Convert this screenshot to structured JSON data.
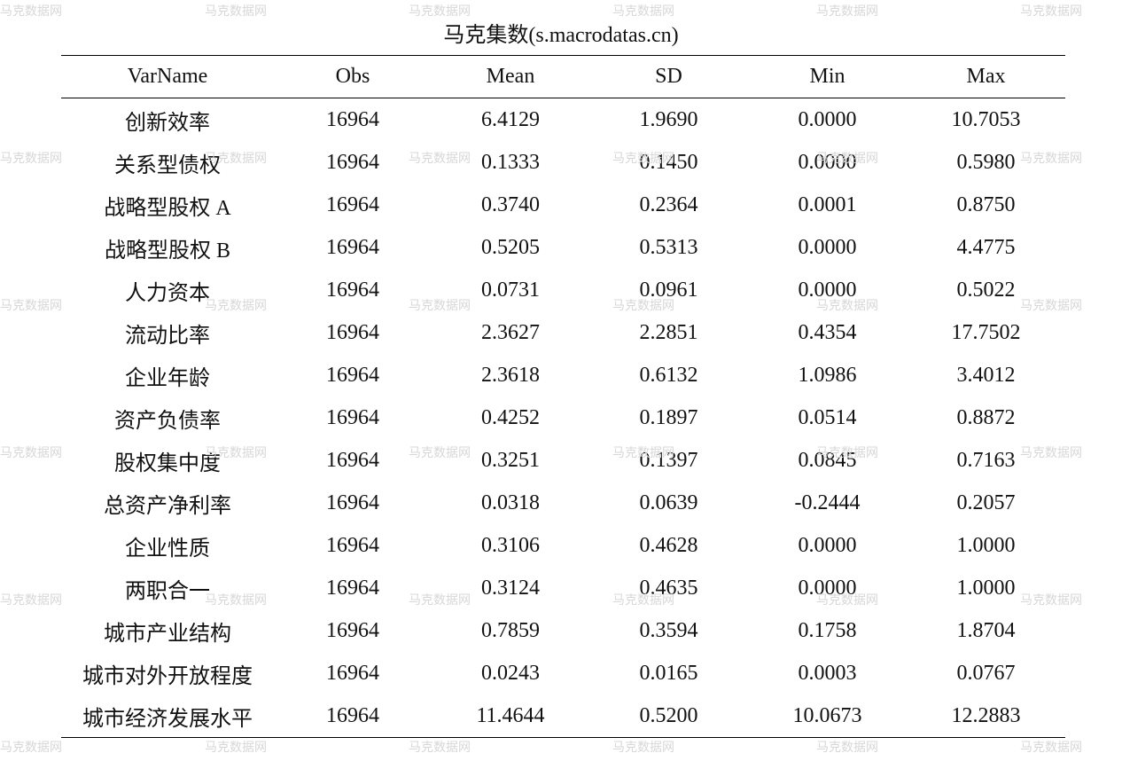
{
  "title": "马克集数(s.macrodatas.cn)",
  "watermark_text": "马克数据网",
  "table": {
    "headers": [
      "VarName",
      "Obs",
      "Mean",
      "SD",
      "Min",
      "Max"
    ],
    "rows": [
      [
        "创新效率",
        "16964",
        "6.4129",
        "1.9690",
        "0.0000",
        "10.7053"
      ],
      [
        "关系型债权",
        "16964",
        "0.1333",
        "0.1450",
        "0.0000",
        "0.5980"
      ],
      [
        "战略型股权 A",
        "16964",
        "0.3740",
        "0.2364",
        "0.0001",
        "0.8750"
      ],
      [
        "战略型股权 B",
        "16964",
        "0.5205",
        "0.5313",
        "0.0000",
        "4.4775"
      ],
      [
        "人力资本",
        "16964",
        "0.0731",
        "0.0961",
        "0.0000",
        "0.5022"
      ],
      [
        "流动比率",
        "16964",
        "2.3627",
        "2.2851",
        "0.4354",
        "17.7502"
      ],
      [
        "企业年龄",
        "16964",
        "2.3618",
        "0.6132",
        "1.0986",
        "3.4012"
      ],
      [
        "资产负债率",
        "16964",
        "0.4252",
        "0.1897",
        "0.0514",
        "0.8872"
      ],
      [
        "股权集中度",
        "16964",
        "0.3251",
        "0.1397",
        "0.0845",
        "0.7163"
      ],
      [
        "总资产净利率",
        "16964",
        "0.0318",
        "0.0639",
        "-0.2444",
        "0.2057"
      ],
      [
        "企业性质",
        "16964",
        "0.3106",
        "0.4628",
        "0.0000",
        "1.0000"
      ],
      [
        "两职合一",
        "16964",
        "0.3124",
        "0.4635",
        "0.0000",
        "1.0000"
      ],
      [
        "城市产业结构",
        "16964",
        "0.7859",
        "0.3594",
        "0.1758",
        "1.8704"
      ],
      [
        "城市对外开放程度",
        "16964",
        "0.0243",
        "0.0165",
        "0.0003",
        "0.0767"
      ],
      [
        "城市经济发展水平",
        "16964",
        "11.4644",
        "0.5200",
        "10.0673",
        "12.2883"
      ]
    ]
  }
}
